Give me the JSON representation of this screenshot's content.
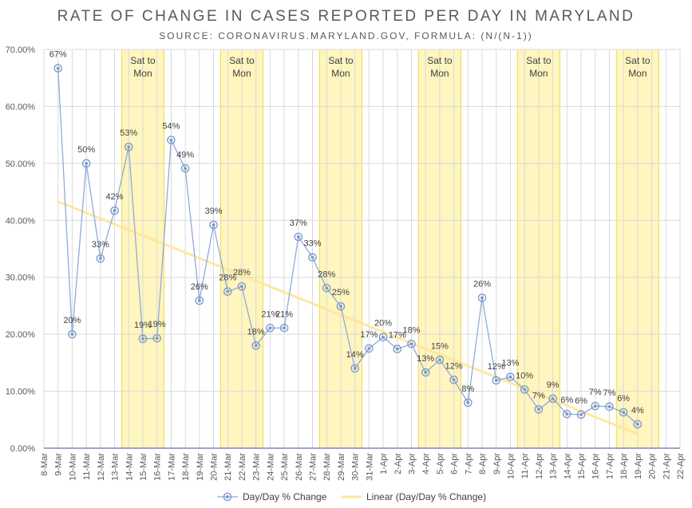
{
  "chart_data": {
    "type": "line",
    "title": "RATE OF CHANGE IN CASES REPORTED PER DAY IN MARYLAND",
    "subtitle": "SOURCE: CORONAVIRUS.MARYLAND.GOV, FORMULA: (N/(N-1))",
    "ylim": [
      0,
      70
    ],
    "yticks": [
      "0.00%",
      "10.00%",
      "20.00%",
      "30.00%",
      "40.00%",
      "50.00%",
      "60.00%",
      "70.00%"
    ],
    "categories": [
      "8-Mar",
      "9-Mar",
      "10-Mar",
      "11-Mar",
      "12-Mar",
      "13-Mar",
      "14-Mar",
      "15-Mar",
      "16-Mar",
      "17-Mar",
      "18-Mar",
      "19-Mar",
      "20-Mar",
      "21-Mar",
      "22-Mar",
      "23-Mar",
      "24-Mar",
      "25-Mar",
      "26-Mar",
      "27-Mar",
      "28-Mar",
      "29-Mar",
      "30-Mar",
      "31-Mar",
      "1-Apr",
      "2-Apr",
      "3-Apr",
      "4-Apr",
      "5-Apr",
      "6-Apr",
      "7-Apr",
      "8-Apr",
      "9-Apr",
      "10-Apr",
      "11-Apr",
      "12-Apr",
      "13-Apr",
      "14-Apr",
      "15-Apr",
      "16-Apr",
      "17-Apr",
      "18-Apr",
      "19-Apr",
      "20-Apr",
      "21-Apr",
      "22-Apr"
    ],
    "series": [
      {
        "name": "Day/Day % Change",
        "color": "#8FAADC",
        "x": [
          "9-Mar",
          "10-Mar",
          "11-Mar",
          "12-Mar",
          "13-Mar",
          "14-Mar",
          "15-Mar",
          "16-Mar",
          "17-Mar",
          "18-Mar",
          "19-Mar",
          "20-Mar",
          "21-Mar",
          "22-Mar",
          "23-Mar",
          "24-Mar",
          "25-Mar",
          "26-Mar",
          "27-Mar",
          "28-Mar",
          "29-Mar",
          "30-Mar",
          "31-Mar",
          "1-Apr",
          "2-Apr",
          "3-Apr",
          "4-Apr",
          "5-Apr",
          "6-Apr",
          "7-Apr",
          "8-Apr",
          "9-Apr",
          "10-Apr",
          "11-Apr",
          "12-Apr",
          "13-Apr",
          "14-Apr",
          "15-Apr",
          "16-Apr",
          "17-Apr",
          "18-Apr",
          "19-Apr"
        ],
        "values": [
          66.7,
          20.0,
          50.0,
          33.3,
          41.7,
          52.9,
          19.2,
          19.3,
          54.1,
          49.1,
          25.9,
          39.2,
          27.5,
          28.4,
          18.0,
          21.1,
          21.1,
          37.1,
          33.5,
          28.1,
          24.9,
          14.0,
          17.5,
          19.5,
          17.4,
          18.3,
          13.3,
          15.5,
          12.0,
          8.0,
          26.4,
          11.9,
          12.5,
          10.3,
          6.8,
          8.7,
          6.0,
          5.9,
          7.4,
          7.3,
          6.3,
          4.2
        ],
        "labels": [
          "67%",
          "20%",
          "50%",
          "33%",
          "42%",
          "53%",
          "19%",
          "19%",
          "54%",
          "49%",
          "26%",
          "39%",
          "28%",
          "28%",
          "18%",
          "21%",
          "21%",
          "37%",
          "33%",
          "28%",
          "25%",
          "14%",
          "17%",
          "20%",
          "17%",
          "18%",
          "13%",
          "15%",
          "12%",
          "8%",
          "26%",
          "12%",
          "13%",
          "10%",
          "7%",
          "9%",
          "6%",
          "6%",
          "7%",
          "7%",
          "6%",
          "4%"
        ]
      },
      {
        "name": "Linear (Day/Day % Change)",
        "color": "#FFE699",
        "type": "trendline",
        "x": [
          "9-Mar",
          "19-Apr"
        ],
        "values": [
          43.3,
          2.5
        ]
      }
    ],
    "bands": [
      {
        "x": [
          "14-Mar",
          "16-Mar"
        ],
        "label": "Sat to Mon"
      },
      {
        "x": [
          "21-Mar",
          "23-Mar"
        ],
        "label": "Sat to Mon"
      },
      {
        "x": [
          "28-Mar",
          "30-Mar"
        ],
        "label": "Sat to Mon"
      },
      {
        "x": [
          "4-Apr",
          "6-Apr"
        ],
        "label": "Sat to Mon"
      },
      {
        "x": [
          "11-Apr",
          "13-Apr"
        ],
        "label": "Sat to Mon"
      },
      {
        "x": [
          "18-Apr",
          "20-Apr"
        ],
        "label": "Sat to Mon"
      }
    ],
    "legend": "bottom",
    "grid": true
  }
}
